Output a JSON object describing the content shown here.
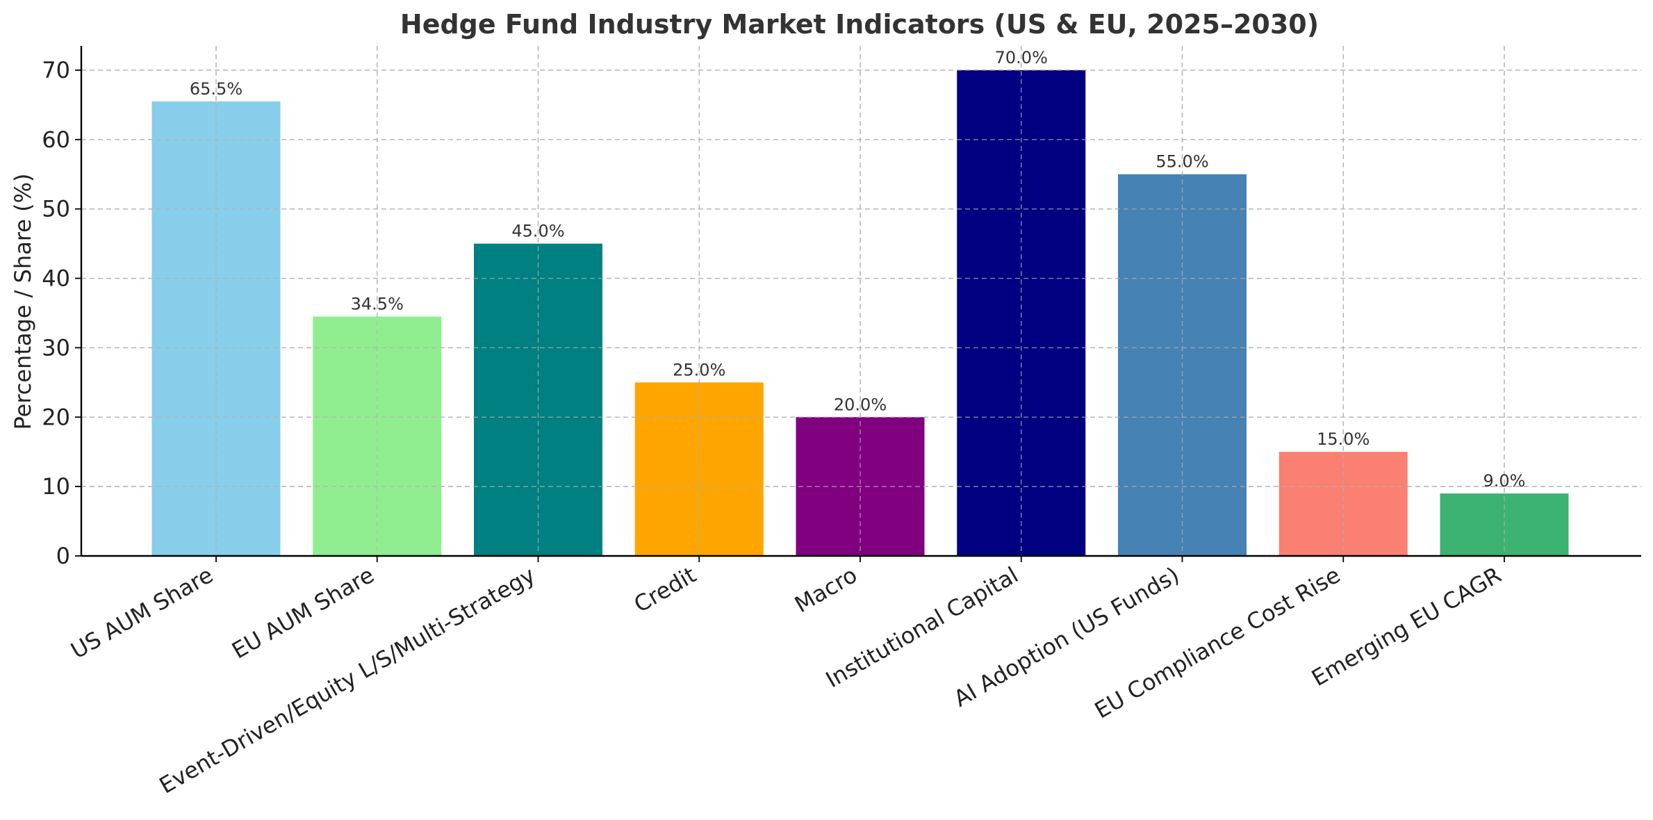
{
  "chart_data": {
    "type": "bar",
    "title": "Hedge Fund Industry Market Indicators (US & EU, 2025–2030)",
    "xlabel": "",
    "ylabel": "Percentage / Share (%)",
    "ylim": [
      0,
      73.5
    ],
    "yticks": [
      0,
      10,
      20,
      30,
      40,
      50,
      60,
      70
    ],
    "grid": true,
    "categories": [
      "US AUM Share",
      "EU AUM Share",
      "Event-Driven/Equity L/S/Multi-Strategy",
      "Credit",
      "Macro",
      "Institutional Capital",
      "AI Adoption (US Funds)",
      "EU Compliance Cost Rise",
      "Emerging EU CAGR"
    ],
    "values": [
      65.5,
      34.5,
      45.0,
      25.0,
      20.0,
      70.0,
      55.0,
      15.0,
      9.0
    ],
    "value_labels": [
      "65.5%",
      "34.5%",
      "45.0%",
      "25.0%",
      "20.0%",
      "70.0%",
      "55.0%",
      "15.0%",
      "9.0%"
    ],
    "colors": [
      "#87CEEB",
      "#90EE90",
      "#008080",
      "#FFA500",
      "#800080",
      "#000080",
      "#4682B4",
      "#FA8072",
      "#3CB371"
    ]
  }
}
